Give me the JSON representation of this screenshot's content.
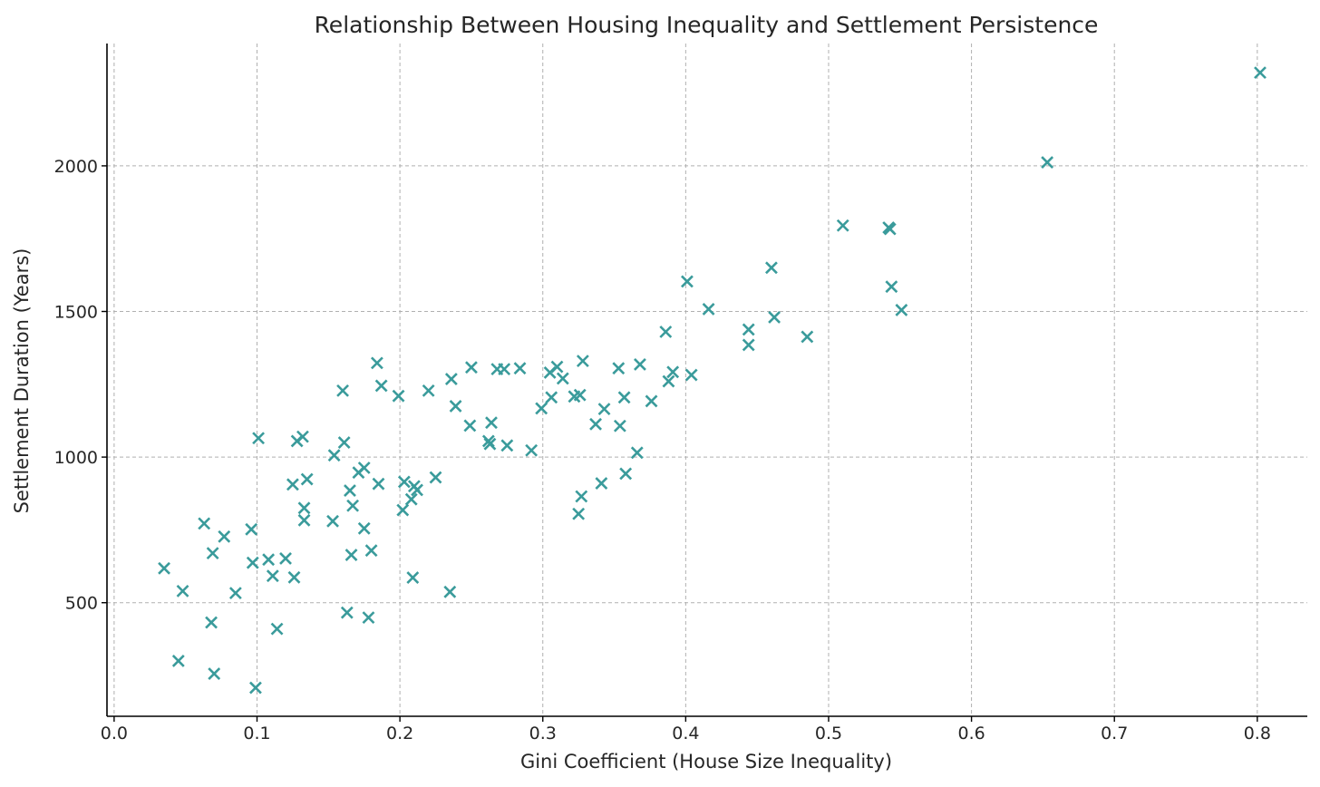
{
  "chart_data": {
    "type": "scatter",
    "title": "Relationship Between Housing Inequality and Settlement Persistence",
    "xlabel": "Gini Coefficient (House Size Inequality)",
    "ylabel": "Settlement Duration (Years)",
    "xlim": [
      -0.005,
      0.835
    ],
    "ylim": [
      110,
      2420
    ],
    "x_ticks": [
      0.0,
      0.1,
      0.2,
      0.3,
      0.4,
      0.5,
      0.6,
      0.7,
      0.8
    ],
    "x_tick_labels": [
      "0.0",
      "0.1",
      "0.2",
      "0.3",
      "0.4",
      "0.5",
      "0.6",
      "0.7",
      "0.8"
    ],
    "y_ticks": [
      500,
      1000,
      1500,
      2000
    ],
    "y_tick_labels": [
      "500",
      "1000",
      "1500",
      "2000"
    ],
    "grid": true,
    "marker": "x",
    "color": "#3a9b9b",
    "points": [
      [
        0.035,
        618
      ],
      [
        0.045,
        300
      ],
      [
        0.048,
        540
      ],
      [
        0.063,
        772
      ],
      [
        0.068,
        432
      ],
      [
        0.069,
        670
      ],
      [
        0.07,
        256
      ],
      [
        0.077,
        727
      ],
      [
        0.085,
        533
      ],
      [
        0.096,
        752
      ],
      [
        0.097,
        637
      ],
      [
        0.099,
        208
      ],
      [
        0.101,
        1065
      ],
      [
        0.108,
        648
      ],
      [
        0.111,
        592
      ],
      [
        0.114,
        410
      ],
      [
        0.12,
        652
      ],
      [
        0.125,
        906
      ],
      [
        0.126,
        587
      ],
      [
        0.128,
        1055
      ],
      [
        0.132,
        1070
      ],
      [
        0.133,
        825
      ],
      [
        0.133,
        783
      ],
      [
        0.135,
        924
      ],
      [
        0.153,
        780
      ],
      [
        0.154,
        1006
      ],
      [
        0.16,
        1228
      ],
      [
        0.161,
        1050
      ],
      [
        0.163,
        466
      ],
      [
        0.165,
        885
      ],
      [
        0.166,
        664
      ],
      [
        0.167,
        833
      ],
      [
        0.171,
        947
      ],
      [
        0.175,
        963
      ],
      [
        0.175,
        755
      ],
      [
        0.178,
        449
      ],
      [
        0.18,
        679
      ],
      [
        0.184,
        1323
      ],
      [
        0.185,
        908
      ],
      [
        0.187,
        1245
      ],
      [
        0.199,
        1210
      ],
      [
        0.202,
        818
      ],
      [
        0.203,
        915
      ],
      [
        0.208,
        855
      ],
      [
        0.209,
        586
      ],
      [
        0.21,
        900
      ],
      [
        0.212,
        887
      ],
      [
        0.22,
        1228
      ],
      [
        0.225,
        930
      ],
      [
        0.235,
        537
      ],
      [
        0.236,
        1268
      ],
      [
        0.239,
        1175
      ],
      [
        0.249,
        1108
      ],
      [
        0.25,
        1308
      ],
      [
        0.262,
        1055
      ],
      [
        0.263,
        1045
      ],
      [
        0.264,
        1118
      ],
      [
        0.268,
        1302
      ],
      [
        0.273,
        1302
      ],
      [
        0.275,
        1040
      ],
      [
        0.284,
        1305
      ],
      [
        0.292,
        1023
      ],
      [
        0.299,
        1167
      ],
      [
        0.305,
        1290
      ],
      [
        0.306,
        1205
      ],
      [
        0.31,
        1310
      ],
      [
        0.314,
        1270
      ],
      [
        0.322,
        1208
      ],
      [
        0.325,
        805
      ],
      [
        0.326,
        1213
      ],
      [
        0.327,
        865
      ],
      [
        0.328,
        1330
      ],
      [
        0.337,
        1113
      ],
      [
        0.341,
        910
      ],
      [
        0.343,
        1165
      ],
      [
        0.353,
        1305
      ],
      [
        0.354,
        1107
      ],
      [
        0.357,
        1205
      ],
      [
        0.358,
        943
      ],
      [
        0.366,
        1015
      ],
      [
        0.368,
        1318
      ],
      [
        0.376,
        1192
      ],
      [
        0.386,
        1430
      ],
      [
        0.388,
        1260
      ],
      [
        0.391,
        1292
      ],
      [
        0.401,
        1603
      ],
      [
        0.404,
        1282
      ],
      [
        0.416,
        1508
      ],
      [
        0.444,
        1438
      ],
      [
        0.444,
        1385
      ],
      [
        0.46,
        1650
      ],
      [
        0.462,
        1480
      ],
      [
        0.485,
        1413
      ],
      [
        0.51,
        1795
      ],
      [
        0.542,
        1788
      ],
      [
        0.543,
        1783
      ],
      [
        0.544,
        1585
      ],
      [
        0.551,
        1505
      ],
      [
        0.653,
        2012
      ],
      [
        0.802,
        2320
      ]
    ]
  }
}
